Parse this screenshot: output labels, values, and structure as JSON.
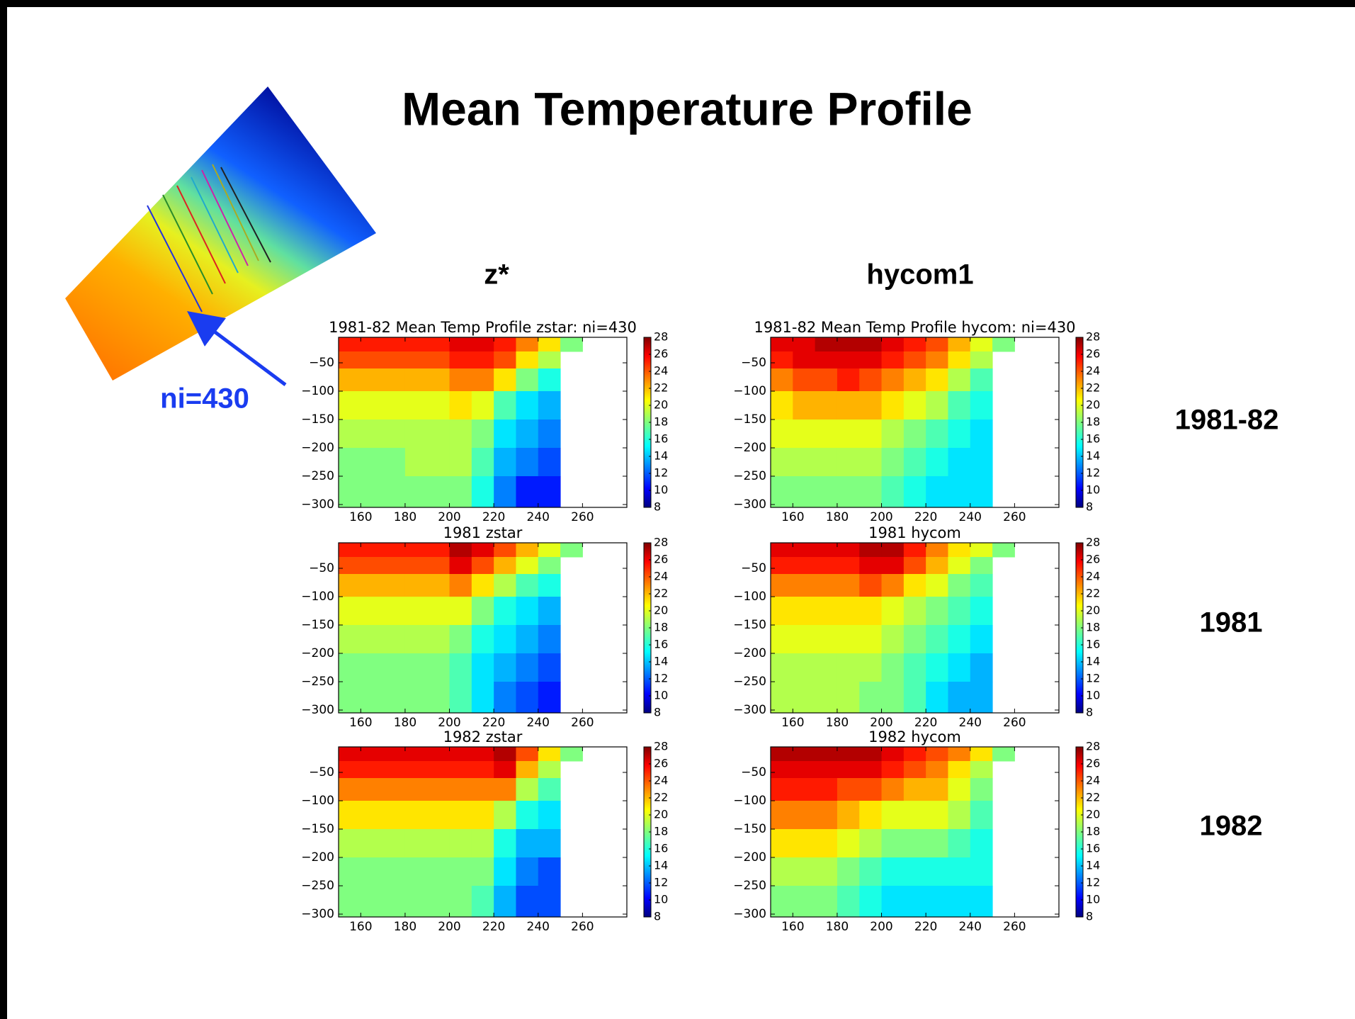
{
  "title": "Mean Temperature Profile",
  "columns": [
    "z*",
    "hycom1"
  ],
  "rows": [
    "1981-82",
    "1981",
    "1982"
  ],
  "map_label": "ni=430",
  "chart_data": [
    {
      "type": "heatmap",
      "title": "1981-82 Mean Temp Profile zstar: ni=430",
      "colormap": "jet",
      "x": [
        150,
        160,
        170,
        180,
        190,
        200,
        210,
        220,
        230,
        240,
        250,
        260
      ],
      "y": [
        -5,
        -30,
        -60,
        -100,
        -150,
        -200,
        -250,
        -305
      ],
      "values": [
        [
          25,
          25,
          25,
          25,
          25,
          26,
          26,
          25,
          23,
          21,
          18
        ],
        [
          24,
          24,
          24,
          24,
          24,
          25,
          25,
          24,
          21,
          19,
          null
        ],
        [
          22,
          22,
          22,
          22,
          22,
          23,
          23,
          21,
          18,
          16,
          null
        ],
        [
          20,
          20,
          20,
          20,
          20,
          21,
          20,
          17,
          15,
          14,
          null
        ],
        [
          19,
          19,
          19,
          19,
          19,
          19,
          18,
          15,
          14,
          13,
          null
        ],
        [
          18,
          18,
          18,
          19,
          19,
          19,
          17,
          14,
          13,
          12,
          null
        ],
        [
          18,
          18,
          18,
          18,
          18,
          18,
          16,
          13,
          11,
          11,
          null
        ]
      ],
      "xlim": [
        150,
        280
      ],
      "ylim": [
        -305,
        -5
      ],
      "xticks": [
        160,
        180,
        200,
        220,
        240,
        260
      ],
      "yticks": [
        {
          "value": -50,
          "label": "−50"
        },
        {
          "value": -100,
          "label": "−100"
        },
        {
          "value": -150,
          "label": "−150"
        },
        {
          "value": -200,
          "label": "−200"
        },
        {
          "value": -250,
          "label": "−250"
        },
        {
          "value": -300,
          "label": "−300"
        }
      ],
      "clim": [
        8,
        28
      ],
      "cticks": [
        8,
        10,
        12,
        14,
        16,
        18,
        20,
        22,
        24,
        26,
        28
      ]
    },
    {
      "type": "heatmap",
      "title": "1981-82 Mean Temp Profile hycom: ni=430",
      "colormap": "jet",
      "x": [
        150,
        160,
        170,
        180,
        190,
        200,
        210,
        220,
        230,
        240,
        250,
        260
      ],
      "y": [
        -5,
        -30,
        -60,
        -100,
        -150,
        -200,
        -250,
        -305
      ],
      "values": [
        [
          26,
          26,
          27,
          27,
          27,
          26,
          25,
          24,
          22,
          20,
          18
        ],
        [
          25,
          26,
          26,
          26,
          26,
          25,
          24,
          23,
          21,
          19,
          null
        ],
        [
          23,
          24,
          24,
          25,
          24,
          23,
          22,
          21,
          19,
          17,
          null
        ],
        [
          21,
          22,
          22,
          22,
          22,
          21,
          20,
          19,
          17,
          16,
          null
        ],
        [
          20,
          20,
          20,
          20,
          20,
          19,
          18,
          17,
          16,
          15,
          null
        ],
        [
          19,
          19,
          19,
          19,
          19,
          18,
          17,
          16,
          15,
          15,
          null
        ],
        [
          18,
          18,
          18,
          18,
          18,
          17,
          16,
          15,
          15,
          15,
          null
        ]
      ],
      "xlim": [
        150,
        280
      ],
      "ylim": [
        -305,
        -5
      ],
      "xticks": [
        160,
        180,
        200,
        220,
        240,
        260
      ],
      "yticks": [
        {
          "value": -50,
          "label": "−50"
        },
        {
          "value": -100,
          "label": "−100"
        },
        {
          "value": -150,
          "label": "−150"
        },
        {
          "value": -200,
          "label": "−200"
        },
        {
          "value": -250,
          "label": "−250"
        },
        {
          "value": -300,
          "label": "−300"
        }
      ],
      "clim": [
        8,
        28
      ],
      "cticks": [
        8,
        10,
        12,
        14,
        16,
        18,
        20,
        22,
        24,
        26,
        28
      ]
    },
    {
      "type": "heatmap",
      "title": "1981 zstar",
      "colormap": "jet",
      "x": [
        150,
        160,
        170,
        180,
        190,
        200,
        210,
        220,
        230,
        240,
        250,
        260
      ],
      "y": [
        -5,
        -30,
        -60,
        -100,
        -150,
        -200,
        -250,
        -305
      ],
      "values": [
        [
          25,
          25,
          25,
          25,
          25,
          27,
          26,
          24,
          22,
          20,
          18
        ],
        [
          24,
          24,
          24,
          24,
          24,
          26,
          24,
          22,
          20,
          18,
          null
        ],
        [
          22,
          22,
          22,
          22,
          22,
          23,
          21,
          19,
          17,
          16,
          null
        ],
        [
          20,
          20,
          20,
          20,
          20,
          20,
          18,
          16,
          15,
          14,
          null
        ],
        [
          19,
          19,
          19,
          19,
          19,
          18,
          16,
          15,
          14,
          13,
          null
        ],
        [
          18,
          18,
          18,
          18,
          18,
          17,
          15,
          14,
          13,
          12,
          null
        ],
        [
          18,
          18,
          18,
          18,
          18,
          17,
          15,
          13,
          12,
          11,
          null
        ]
      ],
      "xlim": [
        150,
        280
      ],
      "ylim": [
        -305,
        -5
      ],
      "xticks": [
        160,
        180,
        200,
        220,
        240,
        260
      ],
      "yticks": [
        {
          "value": -50,
          "label": "−50"
        },
        {
          "value": -100,
          "label": "−100"
        },
        {
          "value": -150,
          "label": "−150"
        },
        {
          "value": -200,
          "label": "−200"
        },
        {
          "value": -250,
          "label": "−250"
        },
        {
          "value": -300,
          "label": "−300"
        }
      ],
      "clim": [
        8,
        28
      ],
      "cticks": [
        8,
        10,
        12,
        14,
        16,
        18,
        20,
        22,
        24,
        26,
        28
      ]
    },
    {
      "type": "heatmap",
      "title": "1981 hycom",
      "colormap": "jet",
      "x": [
        150,
        160,
        170,
        180,
        190,
        200,
        210,
        220,
        230,
        240,
        250,
        260
      ],
      "y": [
        -5,
        -30,
        -60,
        -100,
        -150,
        -200,
        -250,
        -305
      ],
      "values": [
        [
          26,
          26,
          26,
          26,
          27,
          27,
          25,
          23,
          21,
          20,
          18
        ],
        [
          25,
          25,
          25,
          25,
          26,
          26,
          24,
          22,
          20,
          18,
          null
        ],
        [
          23,
          23,
          23,
          23,
          24,
          23,
          21,
          20,
          18,
          17,
          null
        ],
        [
          21,
          21,
          21,
          21,
          21,
          20,
          19,
          18,
          17,
          16,
          null
        ],
        [
          20,
          20,
          20,
          20,
          20,
          19,
          18,
          17,
          16,
          15,
          null
        ],
        [
          19,
          19,
          19,
          19,
          19,
          18,
          17,
          16,
          15,
          14,
          null
        ],
        [
          19,
          19,
          19,
          19,
          18,
          18,
          17,
          15,
          14,
          14,
          null
        ]
      ],
      "xlim": [
        150,
        280
      ],
      "ylim": [
        -305,
        -5
      ],
      "xticks": [
        160,
        180,
        200,
        220,
        240,
        260
      ],
      "yticks": [
        {
          "value": -50,
          "label": "−50"
        },
        {
          "value": -100,
          "label": "−100"
        },
        {
          "value": -150,
          "label": "−150"
        },
        {
          "value": -200,
          "label": "−200"
        },
        {
          "value": -250,
          "label": "−250"
        },
        {
          "value": -300,
          "label": "−300"
        }
      ],
      "clim": [
        8,
        28
      ],
      "cticks": [
        8,
        10,
        12,
        14,
        16,
        18,
        20,
        22,
        24,
        26,
        28
      ]
    },
    {
      "type": "heatmap",
      "title": "1982 zstar",
      "colormap": "jet",
      "x": [
        150,
        160,
        170,
        180,
        190,
        200,
        210,
        220,
        230,
        240,
        250,
        260
      ],
      "y": [
        -5,
        -30,
        -60,
        -100,
        -150,
        -200,
        -250,
        -305
      ],
      "values": [
        [
          26,
          26,
          26,
          26,
          26,
          26,
          26,
          27,
          24,
          21,
          18
        ],
        [
          25,
          25,
          25,
          25,
          25,
          25,
          25,
          26,
          22,
          19,
          null
        ],
        [
          23,
          23,
          23,
          23,
          23,
          23,
          23,
          23,
          19,
          17,
          null
        ],
        [
          21,
          21,
          21,
          21,
          21,
          21,
          21,
          19,
          16,
          15,
          null
        ],
        [
          19,
          19,
          19,
          19,
          19,
          19,
          19,
          16,
          14,
          14,
          null
        ],
        [
          18,
          18,
          18,
          18,
          18,
          18,
          18,
          15,
          13,
          12,
          null
        ],
        [
          18,
          18,
          18,
          18,
          18,
          18,
          17,
          14,
          12,
          12,
          null
        ]
      ],
      "xlim": [
        150,
        280
      ],
      "ylim": [
        -305,
        -5
      ],
      "xticks": [
        160,
        180,
        200,
        220,
        240,
        260
      ],
      "yticks": [
        {
          "value": -50,
          "label": "−50"
        },
        {
          "value": -100,
          "label": "−100"
        },
        {
          "value": -150,
          "label": "−150"
        },
        {
          "value": -200,
          "label": "−200"
        },
        {
          "value": -250,
          "label": "−250"
        },
        {
          "value": -300,
          "label": "−300"
        }
      ],
      "clim": [
        8,
        28
      ],
      "cticks": [
        8,
        10,
        12,
        14,
        16,
        18,
        20,
        22,
        24,
        26,
        28
      ]
    },
    {
      "type": "heatmap",
      "title": "1982 hycom",
      "colormap": "jet",
      "x": [
        150,
        160,
        170,
        180,
        190,
        200,
        210,
        220,
        230,
        240,
        250,
        260
      ],
      "y": [
        -5,
        -30,
        -60,
        -100,
        -150,
        -200,
        -250,
        -305
      ],
      "values": [
        [
          27,
          27,
          27,
          27,
          27,
          26,
          25,
          24,
          23,
          21,
          18
        ],
        [
          26,
          26,
          26,
          26,
          26,
          25,
          24,
          23,
          21,
          19,
          null
        ],
        [
          25,
          25,
          25,
          24,
          24,
          23,
          22,
          22,
          20,
          18,
          null
        ],
        [
          23,
          23,
          23,
          22,
          21,
          20,
          20,
          20,
          19,
          17,
          null
        ],
        [
          21,
          21,
          21,
          20,
          19,
          18,
          18,
          18,
          17,
          16,
          null
        ],
        [
          19,
          19,
          19,
          18,
          17,
          16,
          16,
          16,
          16,
          16,
          null
        ],
        [
          18,
          18,
          18,
          17,
          16,
          15,
          15,
          15,
          15,
          15,
          null
        ]
      ],
      "xlim": [
        150,
        280
      ],
      "ylim": [
        -305,
        -5
      ],
      "xticks": [
        160,
        180,
        200,
        220,
        240,
        260
      ],
      "yticks": [
        {
          "value": -50,
          "label": "−50"
        },
        {
          "value": -100,
          "label": "−100"
        },
        {
          "value": -150,
          "label": "−150"
        },
        {
          "value": -200,
          "label": "−200"
        },
        {
          "value": -250,
          "label": "−250"
        },
        {
          "value": -300,
          "label": "−300"
        }
      ],
      "clim": [
        8,
        28
      ],
      "cticks": [
        8,
        10,
        12,
        14,
        16,
        18,
        20,
        22,
        24,
        26,
        28
      ]
    }
  ]
}
